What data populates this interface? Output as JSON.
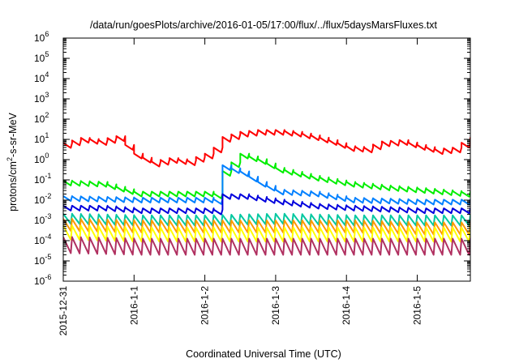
{
  "chart_data": {
    "type": "line",
    "title": "/data/run/goesPlots/archive/2016-01-05/17:00/flux/../flux/5daysMarsFluxes.txt",
    "xlabel": "Coordinated Universal Time (UTC)",
    "ylabel_parts": [
      "protons/cm",
      "2",
      "-s-sr-MeV"
    ],
    "yscale": "log",
    "ylim": [
      1e-06,
      1000000.0
    ],
    "xlim": [
      "2015-12-31T00:00",
      "2016-01-05T18:00"
    ],
    "grid": false,
    "legend": "none",
    "x_ticks": [
      {
        "value": "2015-12-31T00:00",
        "label": "2015-12-31"
      },
      {
        "value": "2016-01-01T00:00",
        "label": "2016-1-1"
      },
      {
        "value": "2016-01-02T00:00",
        "label": "2016-1-2"
      },
      {
        "value": "2016-01-03T00:00",
        "label": "2016-1-3"
      },
      {
        "value": "2016-01-04T00:00",
        "label": "2016-1-4"
      },
      {
        "value": "2016-01-05T00:00",
        "label": "2016-1-5"
      }
    ],
    "y_ticks": [
      {
        "value": 1e-06,
        "base": "10",
        "exp": "-6"
      },
      {
        "value": 1e-05,
        "base": "10",
        "exp": "-5"
      },
      {
        "value": 0.0001,
        "base": "10",
        "exp": "-4"
      },
      {
        "value": 0.001,
        "base": "10",
        "exp": "-3"
      },
      {
        "value": 0.01,
        "base": "10",
        "exp": "-2"
      },
      {
        "value": 0.1,
        "base": "10",
        "exp": "-1"
      },
      {
        "value": 1,
        "base": "10",
        "exp": "0"
      },
      {
        "value": 10.0,
        "base": "10",
        "exp": "1"
      },
      {
        "value": 100.0,
        "base": "10",
        "exp": "2"
      },
      {
        "value": 1000.0,
        "base": "10",
        "exp": "3"
      },
      {
        "value": 10000.0,
        "base": "10",
        "exp": "4"
      },
      {
        "value": 100000.0,
        "base": "10",
        "exp": "5"
      },
      {
        "value": 1000000.0,
        "base": "10",
        "exp": "6"
      }
    ],
    "series": [
      {
        "color": "#ff0000",
        "points": [
          [
            "2015-12-31T00:00",
            5.0
          ],
          [
            "2015-12-31T06:00",
            9.0
          ],
          [
            "2015-12-31T12:00",
            7.0
          ],
          [
            "2015-12-31T18:00",
            11.0
          ],
          [
            "2016-01-01T00:00",
            1.5
          ],
          [
            "2016-01-01T06:00",
            0.6
          ],
          [
            "2016-01-01T12:00",
            0.9
          ],
          [
            "2016-01-01T18:00",
            0.7
          ],
          [
            "2016-01-02T00:00",
            1.5
          ],
          [
            "2016-01-02T02:00",
            2.0
          ],
          [
            "2016-01-02T06:00",
            10.0
          ],
          [
            "2016-01-02T12:00",
            18.0
          ],
          [
            "2016-01-02T18:00",
            22.0
          ],
          [
            "2016-01-03T00:00",
            22.0
          ],
          [
            "2016-01-03T06:00",
            18.0
          ],
          [
            "2016-01-03T12:00",
            12.0
          ],
          [
            "2016-01-03T18:00",
            7.0
          ],
          [
            "2016-01-04T00:00",
            3.5
          ],
          [
            "2016-01-04T06:00",
            3.0
          ],
          [
            "2016-01-04T12:00",
            6.0
          ],
          [
            "2016-01-04T18:00",
            7.0
          ],
          [
            "2016-01-05T00:00",
            4.0
          ],
          [
            "2016-01-05T06:00",
            2.5
          ],
          [
            "2016-01-05T12:00",
            3.0
          ],
          [
            "2016-01-05T18:00",
            9.0
          ]
        ]
      },
      {
        "color": "#00ee00",
        "points": [
          [
            "2015-12-31T00:00",
            0.07
          ],
          [
            "2015-12-31T12:00",
            0.06
          ],
          [
            "2016-01-01T00:00",
            0.02
          ],
          [
            "2016-01-01T12:00",
            0.02
          ],
          [
            "2016-01-02T00:00",
            0.02
          ],
          [
            "2016-01-02T04:00",
            0.015
          ],
          [
            "2016-01-02T05:00",
            0.15
          ],
          [
            "2016-01-02T12:00",
            1.5
          ],
          [
            "2016-01-02T18:00",
            0.8
          ],
          [
            "2016-01-03T00:00",
            0.3
          ],
          [
            "2016-01-03T12:00",
            0.12
          ],
          [
            "2016-01-04T00:00",
            0.06
          ],
          [
            "2016-01-04T12:00",
            0.04
          ],
          [
            "2016-01-05T00:00",
            0.03
          ],
          [
            "2016-01-05T18:00",
            0.018
          ]
        ]
      },
      {
        "color": "#0080ff",
        "points": [
          [
            "2015-12-31T00:00",
            0.012
          ],
          [
            "2015-12-31T12:00",
            0.011
          ],
          [
            "2016-01-01T00:00",
            0.01
          ],
          [
            "2016-01-01T12:00",
            0.01
          ],
          [
            "2016-01-02T00:00",
            0.01
          ],
          [
            "2016-01-02T04:00",
            0.008
          ],
          [
            "2016-01-02T05:00",
            0.05
          ],
          [
            "2016-01-02T06:00",
            0.4
          ],
          [
            "2016-01-02T12:00",
            0.2
          ],
          [
            "2016-01-02T18:00",
            0.06
          ],
          [
            "2016-01-03T00:00",
            0.025
          ],
          [
            "2016-01-03T12:00",
            0.02
          ],
          [
            "2016-01-04T00:00",
            0.01
          ],
          [
            "2016-01-04T12:00",
            0.009
          ],
          [
            "2016-01-05T00:00",
            0.008
          ],
          [
            "2016-01-05T18:00",
            0.008
          ]
        ]
      },
      {
        "color": "#0000dd",
        "points": [
          [
            "2015-12-31T00:00",
            0.004
          ],
          [
            "2015-12-31T12:00",
            0.004
          ],
          [
            "2016-01-01T00:00",
            0.003
          ],
          [
            "2016-01-01T12:00",
            0.003
          ],
          [
            "2016-01-02T00:00",
            0.003
          ],
          [
            "2016-01-02T04:00",
            0.0025
          ],
          [
            "2016-01-02T06:00",
            0.015
          ],
          [
            "2016-01-02T12:00",
            0.015
          ],
          [
            "2016-01-03T00:00",
            0.008
          ],
          [
            "2016-01-03T12:00",
            0.005
          ],
          [
            "2016-01-04T00:00",
            0.004
          ],
          [
            "2016-01-05T00:00",
            0.003
          ],
          [
            "2016-01-05T18:00",
            0.003
          ]
        ]
      },
      {
        "color": "#00c8a0",
        "points": [
          [
            "2015-12-31T00:00",
            0.0012
          ],
          [
            "2016-01-01T00:00",
            0.001
          ],
          [
            "2016-01-02T00:00",
            0.001
          ],
          [
            "2016-01-03T00:00",
            0.0012
          ],
          [
            "2016-01-04T00:00",
            0.001
          ],
          [
            "2016-01-05T00:00",
            0.001
          ],
          [
            "2016-01-05T18:00",
            0.001
          ]
        ]
      },
      {
        "color": "#ff9900",
        "points": [
          [
            "2015-12-31T00:00",
            0.0006
          ],
          [
            "2016-01-01T00:00",
            0.0005
          ],
          [
            "2016-01-02T00:00",
            0.0005
          ],
          [
            "2016-01-03T00:00",
            0.0005
          ],
          [
            "2016-01-04T00:00",
            0.0005
          ],
          [
            "2016-01-05T00:00",
            0.0004
          ],
          [
            "2016-01-05T18:00",
            0.0004
          ]
        ]
      },
      {
        "color": "#ffff00",
        "points": [
          [
            "2015-12-31T00:00",
            0.00025
          ],
          [
            "2016-01-01T00:00",
            0.0002
          ],
          [
            "2016-01-02T00:00",
            0.0002
          ],
          [
            "2016-01-03T00:00",
            0.0002
          ],
          [
            "2016-01-04T00:00",
            0.0002
          ],
          [
            "2016-01-05T00:00",
            0.0002
          ],
          [
            "2016-01-05T18:00",
            0.0002
          ]
        ]
      },
      {
        "color": "#b03060",
        "points": [
          [
            "2015-12-31T00:00",
            6e-05
          ],
          [
            "2016-01-01T00:00",
            5e-05
          ],
          [
            "2016-01-02T00:00",
            5e-05
          ],
          [
            "2016-01-03T00:00",
            5e-05
          ],
          [
            "2016-01-04T00:00",
            5e-05
          ],
          [
            "2016-01-05T00:00",
            5e-05
          ],
          [
            "2016-01-05T18:00",
            5e-05
          ]
        ]
      }
    ]
  }
}
